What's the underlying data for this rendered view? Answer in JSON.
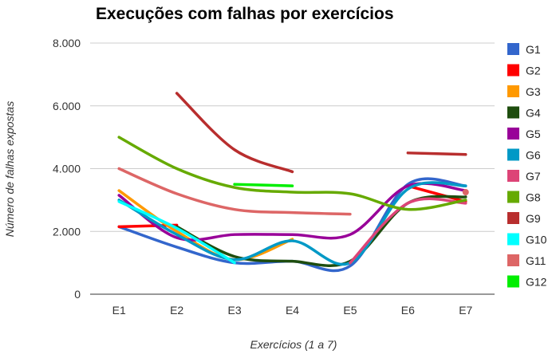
{
  "chart_data": {
    "type": "line",
    "title": "Execuções com falhas por exercícios",
    "xlabel": "Exercícios (1 a 7)",
    "ylabel": "Número de falhas expostas",
    "categories": [
      "E1",
      "E2",
      "E3",
      "E4",
      "E5",
      "E6",
      "E7"
    ],
    "ylim": [
      0,
      8000
    ],
    "yticks": [
      0,
      2000,
      4000,
      6000,
      8000
    ],
    "ytick_labels": [
      "0",
      "2.000",
      "4.000",
      "6.000",
      "8.000"
    ],
    "grid": "horizontal",
    "legend": "right",
    "series": [
      {
        "name": "G1",
        "color": "#3366cc",
        "values": [
          2150,
          1500,
          1000,
          1050,
          900,
          3500,
          3450
        ]
      },
      {
        "name": "G2",
        "color": "#ff0000",
        "values": [
          2150,
          2200,
          null,
          null,
          null,
          3450,
          2950
        ]
      },
      {
        "name": "G3",
        "color": "#ff9900",
        "values": [
          3300,
          2000,
          1100,
          1750,
          null,
          null,
          null
        ]
      },
      {
        "name": "G4",
        "color": "#1e4d0e",
        "values": [
          null,
          2150,
          1200,
          1050,
          1050,
          2900,
          3100
        ]
      },
      {
        "name": "G5",
        "color": "#990099",
        "values": [
          3150,
          1800,
          1900,
          1900,
          1900,
          3450,
          3300
        ]
      },
      {
        "name": "G6",
        "color": "#0099c6",
        "values": [
          3000,
          1900,
          1100,
          1700,
          1000,
          3350,
          3450
        ]
      },
      {
        "name": "G7",
        "color": "#dd4477",
        "values": [
          null,
          null,
          null,
          null,
          1000,
          2900,
          2900
        ]
      },
      {
        "name": "G8",
        "color": "#66aa00",
        "values": [
          5000,
          4000,
          3400,
          3250,
          3200,
          2700,
          3000
        ]
      },
      {
        "name": "G9",
        "color": "#b82e2e",
        "values": [
          null,
          6400,
          4600,
          3900,
          null,
          4500,
          4450
        ]
      },
      {
        "name": "G10",
        "color": "#00ffff",
        "values": [
          2950,
          2100,
          1000,
          null,
          null,
          null,
          null
        ]
      },
      {
        "name": "G11",
        "color": "#dd6666",
        "values": [
          4000,
          3200,
          2700,
          2600,
          2550,
          null,
          3250
        ]
      },
      {
        "name": "G12",
        "color": "#00ee00",
        "values": [
          null,
          null,
          3500,
          3450,
          null,
          null,
          null
        ]
      }
    ]
  }
}
